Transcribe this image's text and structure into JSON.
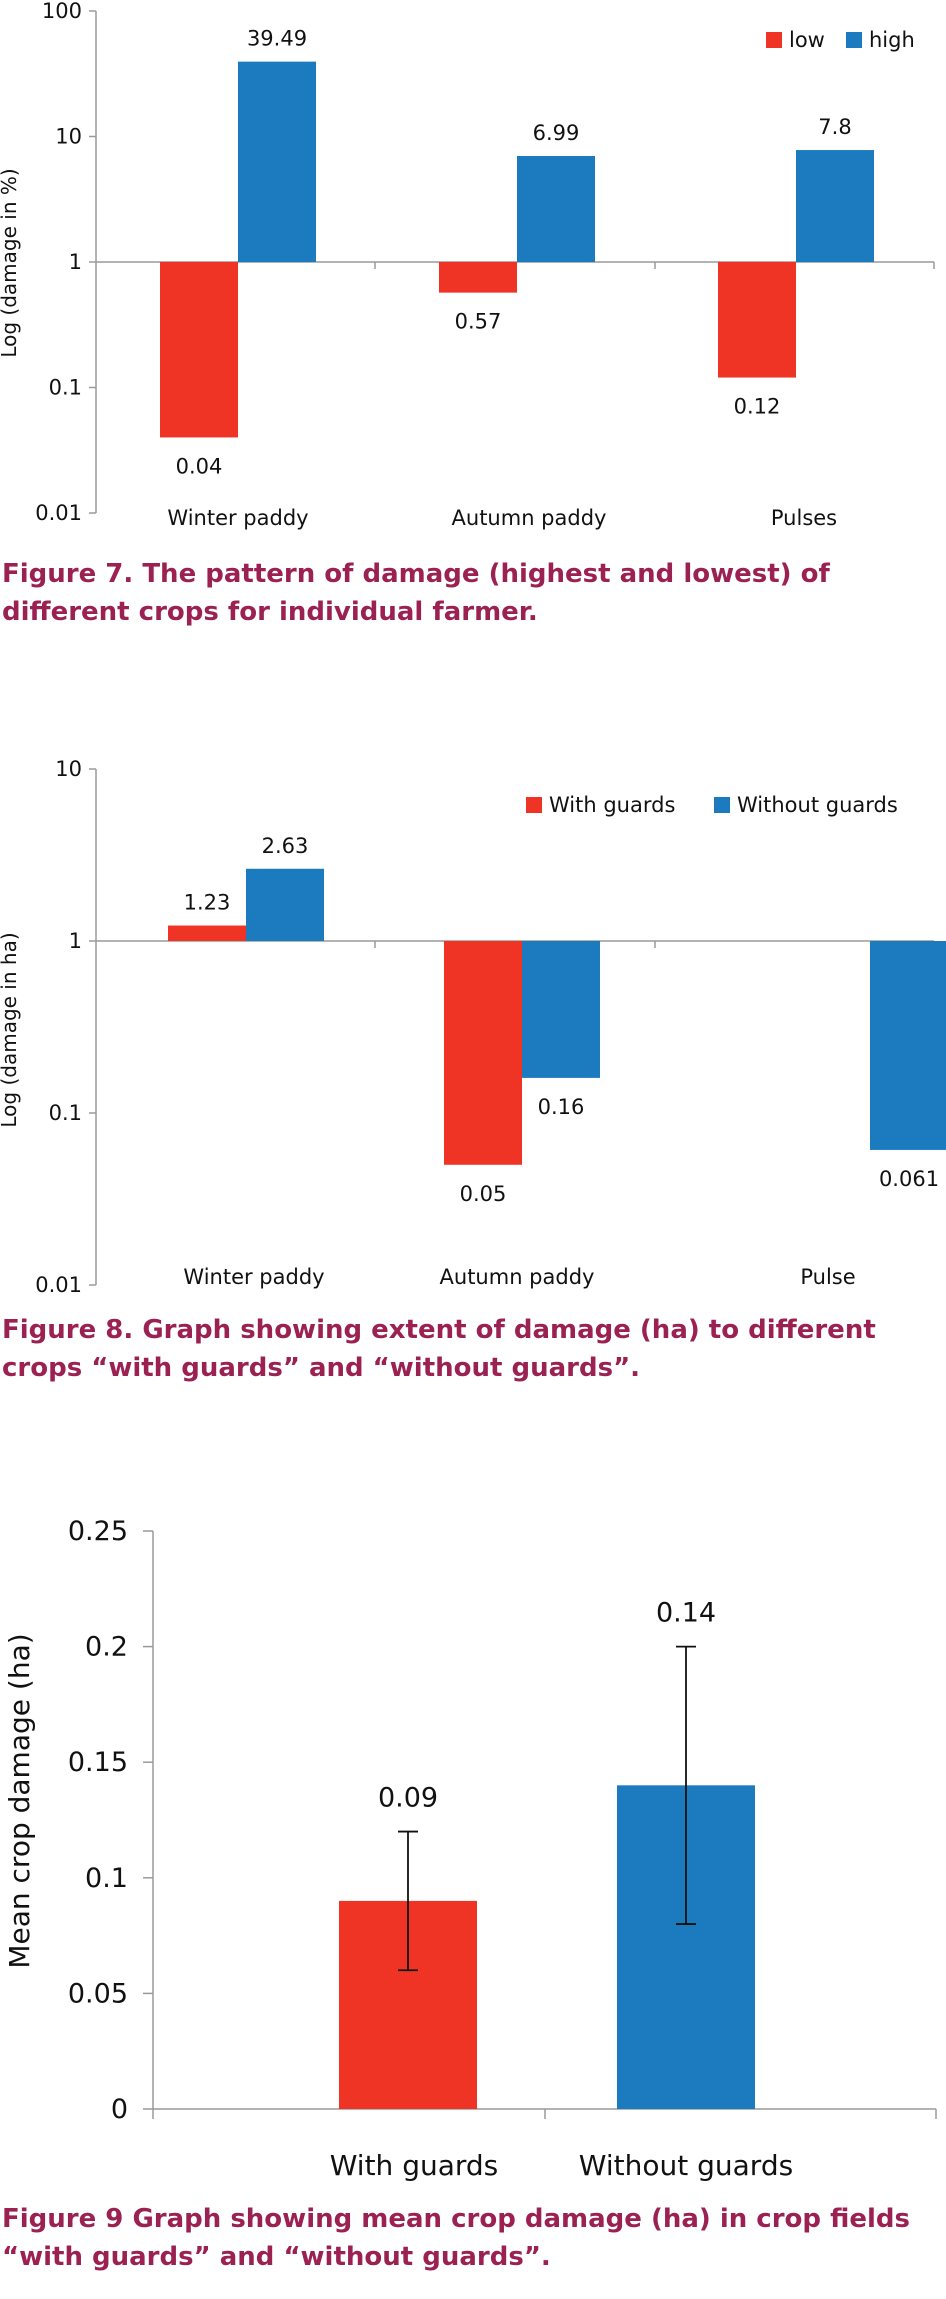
{
  "figures": [
    {
      "caption": "Figure 7. The pattern of damage (highest and lowest) of different crops for individual farmer.",
      "colors": {
        "low": "#ef3324",
        "high": "#1b7bbe"
      }
    },
    {
      "caption": "Figure 8. Graph showing extent of damage (ha) to different crops “with guards” and “without guards”.",
      "colors": {
        "with": "#ef3324",
        "without": "#1b7bbe"
      }
    },
    {
      "caption": "Figure 9 Graph showing mean crop damage (ha) in crop fields “with guards” and “without guards”.",
      "colors": {
        "with": "#ef3324",
        "without": "#1b7bbe"
      }
    }
  ],
  "chart_data": [
    {
      "type": "bar",
      "scale": "log",
      "title": "",
      "xlabel": "",
      "ylabel": "Log (damage in %)",
      "ylim": [
        0.01,
        100
      ],
      "yticks": [
        "0.01",
        "0.1",
        "1",
        "10",
        "100"
      ],
      "categories": [
        "Winter paddy",
        "Autumn paddy",
        "Pulses"
      ],
      "series": [
        {
          "name": "low",
          "values": [
            0.04,
            0.57,
            0.12
          ],
          "labels": [
            "0.04",
            "0.57",
            "0.12"
          ]
        },
        {
          "name": "high",
          "values": [
            39.49,
            6.99,
            7.8
          ],
          "labels": [
            "39.49",
            "6.99",
            "7.8"
          ]
        }
      ],
      "legend": "top-right"
    },
    {
      "type": "bar",
      "scale": "log",
      "title": "",
      "xlabel": "",
      "ylabel": "Log (damage in ha)",
      "ylim": [
        0.01,
        10
      ],
      "yticks": [
        "0.01",
        "0.1",
        "1",
        "10"
      ],
      "categories": [
        "Winter paddy",
        "Autumn paddy",
        "Pulse"
      ],
      "series": [
        {
          "name": "With guards",
          "values": [
            1.23,
            0.05,
            null
          ],
          "labels": [
            "1.23",
            "0.05",
            ""
          ]
        },
        {
          "name": "Without guards",
          "values": [
            2.63,
            0.16,
            0.061
          ],
          "labels": [
            "2.63",
            "0.16",
            "0.061"
          ]
        }
      ],
      "legend": "top-right"
    },
    {
      "type": "bar",
      "scale": "linear",
      "title": "",
      "xlabel": "",
      "ylabel": "Mean crop damage (ha)",
      "ylim": [
        0,
        0.25
      ],
      "yticks": [
        "0",
        "0.05",
        "0.1",
        "0.15",
        "0.2",
        "0.25"
      ],
      "categories": [
        "With guards",
        "Without guards"
      ],
      "values": [
        0.09,
        0.14
      ],
      "labels": [
        "0.09",
        "0.14"
      ],
      "errors": [
        [
          0.06,
          0.12
        ],
        [
          0.08,
          0.2
        ]
      ]
    }
  ]
}
